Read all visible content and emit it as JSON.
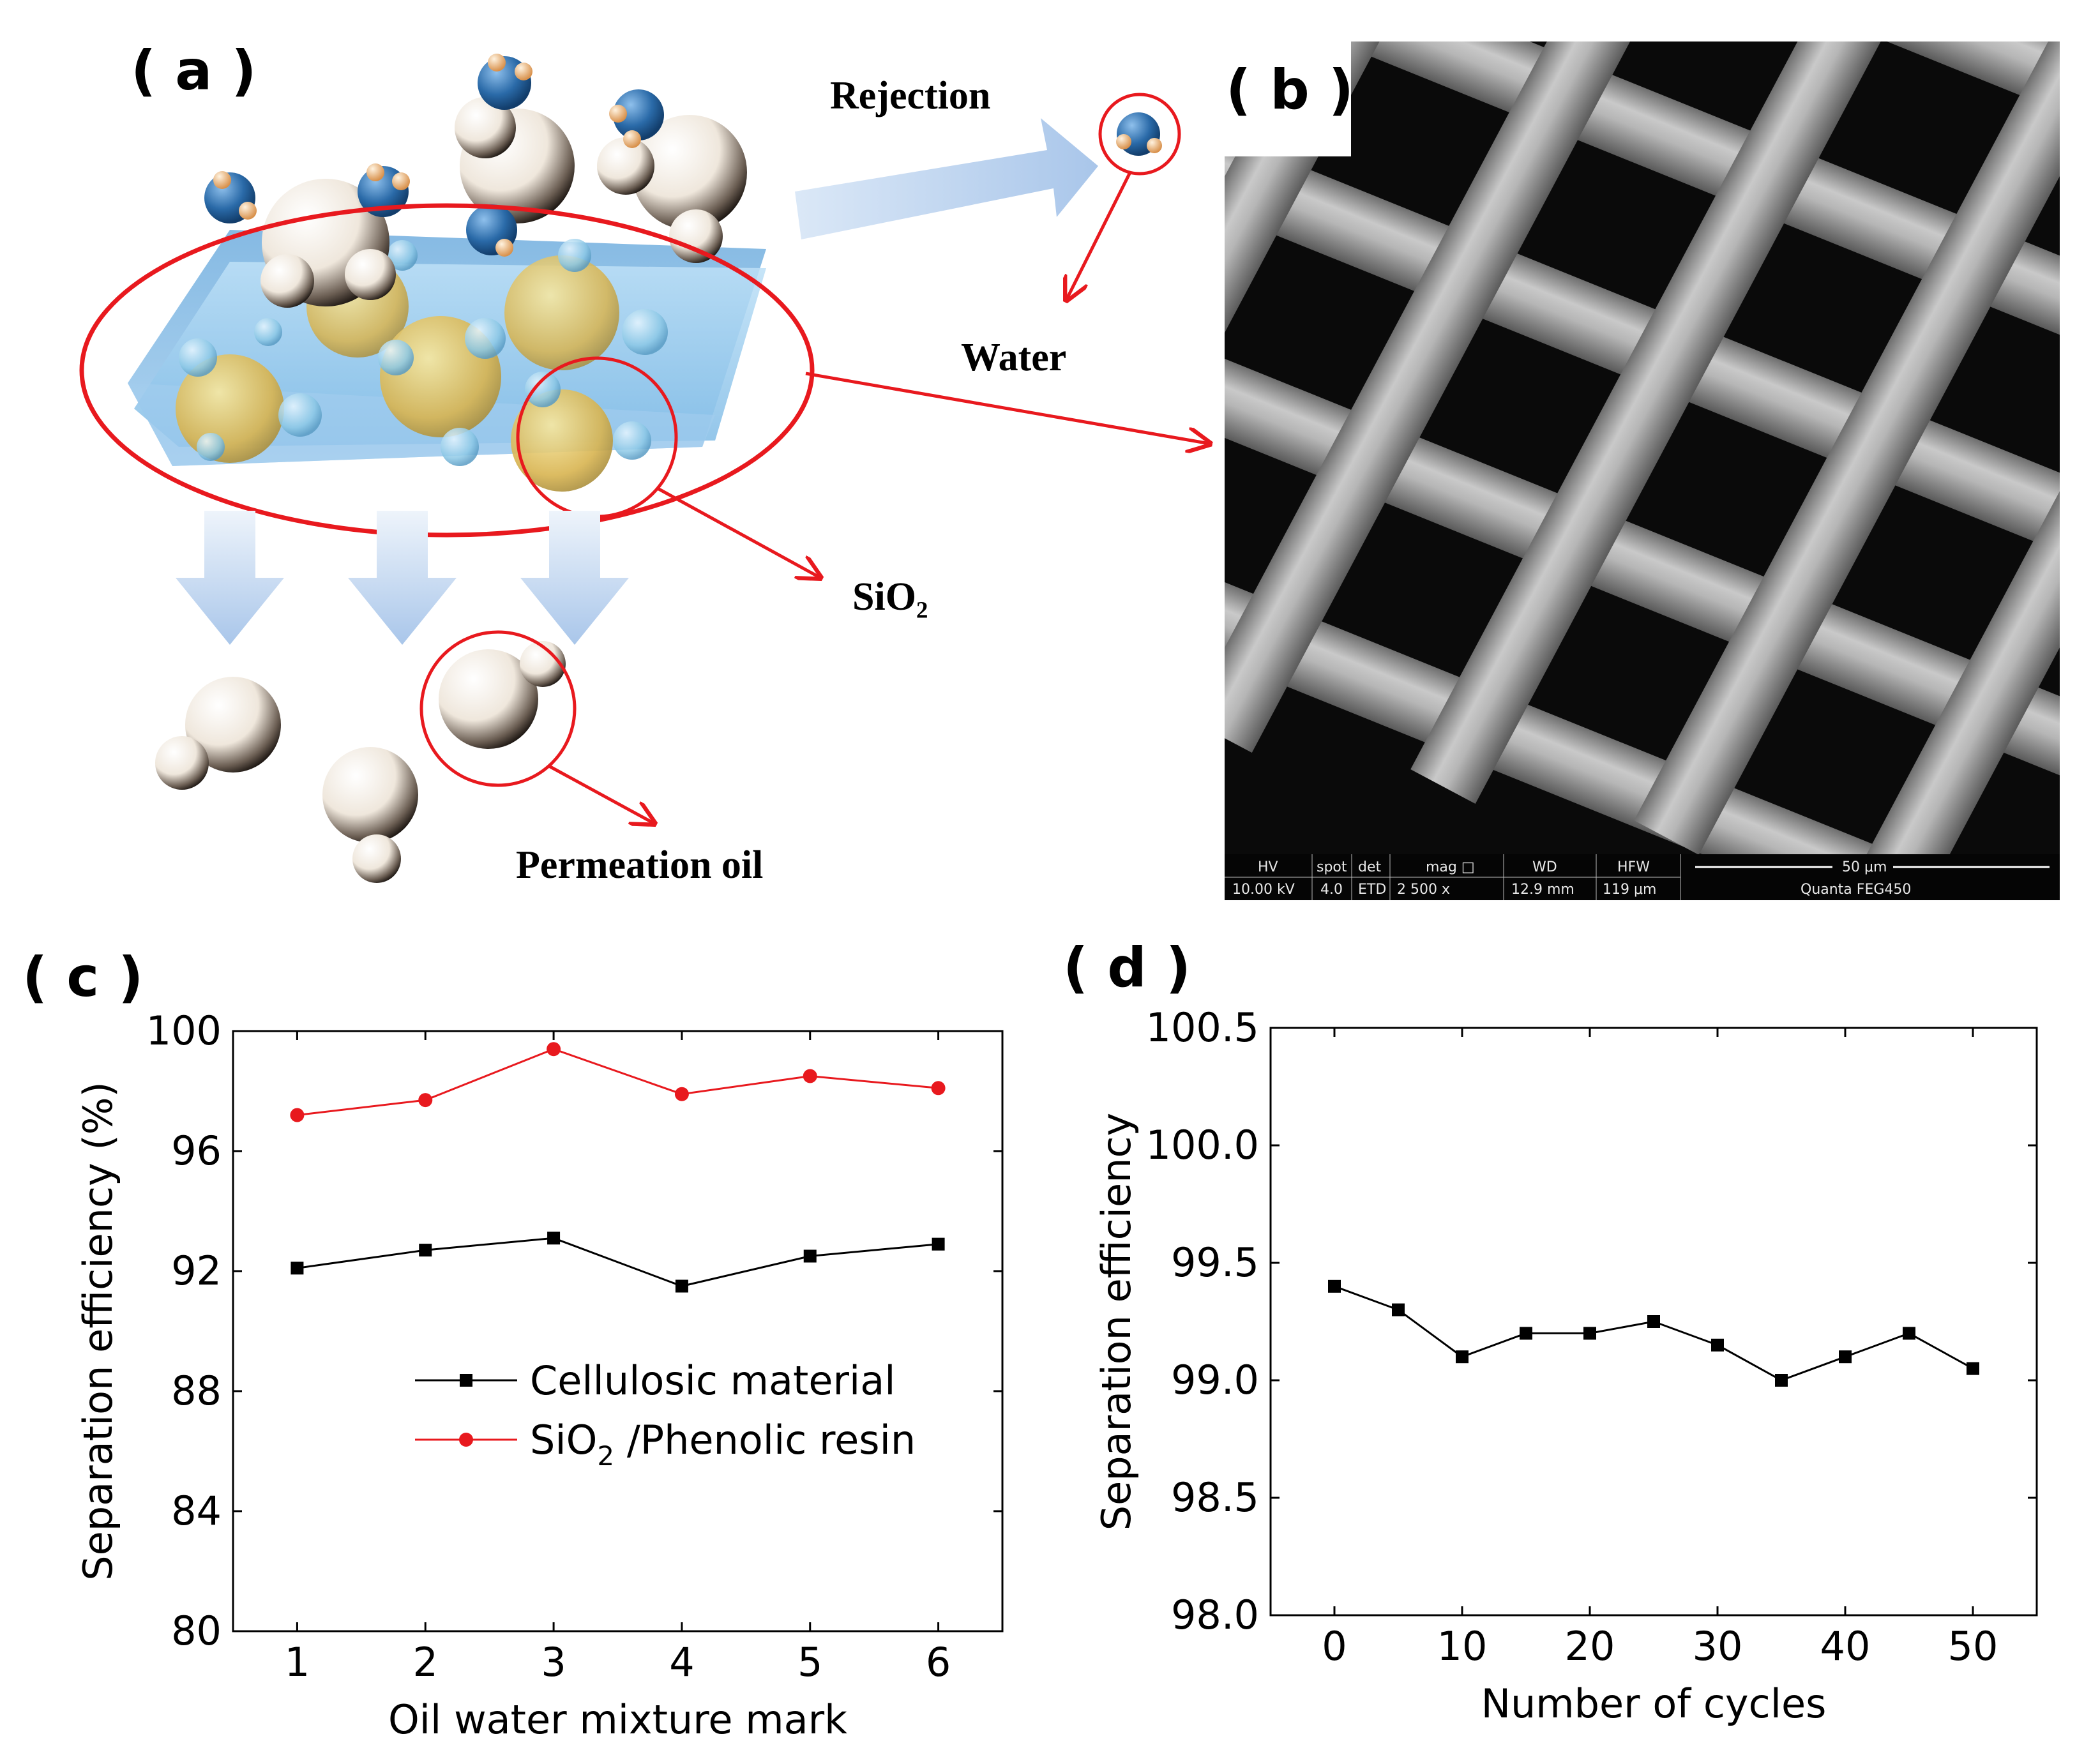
{
  "panel_a": {
    "label": "( a )",
    "rejection_label": "Rejection",
    "water_label": "Water",
    "sio2_label": "SiO₂",
    "permeation_label": "Permeation oil"
  },
  "panel_b": {
    "label": "( b )",
    "sem_header": [
      "HV",
      "spot",
      "det",
      "mag □",
      "WD",
      "HFW",
      "50 μm"
    ],
    "sem_values": [
      "10.00 kV",
      "4.0",
      "ETD",
      "2 500 x",
      "12.9 mm",
      "119 μm",
      "Quanta FEG450"
    ]
  },
  "panel_c": {
    "label": "( c )"
  },
  "panel_d": {
    "label": "( d )"
  },
  "colors": {
    "red": "#e8191e",
    "black": "#000000",
    "arrow_blue": "#a9c6ea",
    "water_blue": "#2a6aa8"
  },
  "chart_data": [
    {
      "type": "line",
      "xlabel": "Oil water mixture mark",
      "ylabel": "Separation efficiency (%)",
      "x": [
        1,
        2,
        3,
        4,
        5,
        6
      ],
      "xticks": [
        1,
        2,
        3,
        4,
        5,
        6
      ],
      "xlim": [
        0.5,
        6.5
      ],
      "ylim": [
        80,
        100
      ],
      "yticks": [
        80,
        84,
        88,
        92,
        96,
        100
      ],
      "series": [
        {
          "name": "Cellulosic material",
          "values": [
            92.1,
            92.7,
            93.1,
            91.5,
            92.5,
            92.9
          ],
          "color": "#000000",
          "marker": "square"
        },
        {
          "name": "SiO2 /Phenolic resin",
          "values": [
            97.2,
            97.7,
            99.4,
            97.9,
            98.5,
            98.1
          ],
          "color": "#e8191e",
          "marker": "circle"
        }
      ],
      "legend_entries": [
        "Cellulosic material",
        "SiO",
        "2",
        " /Phenolic resin"
      ],
      "legend": "center",
      "grid": false
    },
    {
      "type": "line",
      "xlabel": "Number of cycles",
      "ylabel": "Separation efficiency",
      "x": [
        0,
        5,
        10,
        15,
        20,
        25,
        30,
        35,
        40,
        45,
        50
      ],
      "xticks": [
        0,
        10,
        20,
        30,
        40,
        50
      ],
      "xlim": [
        -5,
        55
      ],
      "ylim": [
        98.0,
        100.5
      ],
      "yticks": [
        "98.0",
        "98.5",
        "99.0",
        "99.5",
        "100.0",
        "100.5"
      ],
      "series": [
        {
          "values": [
            99.4,
            99.3,
            99.1,
            99.2,
            99.2,
            99.25,
            99.15,
            99.0,
            99.1,
            99.2,
            99.05
          ],
          "color": "#000000",
          "marker": "square"
        }
      ],
      "grid": false
    }
  ]
}
